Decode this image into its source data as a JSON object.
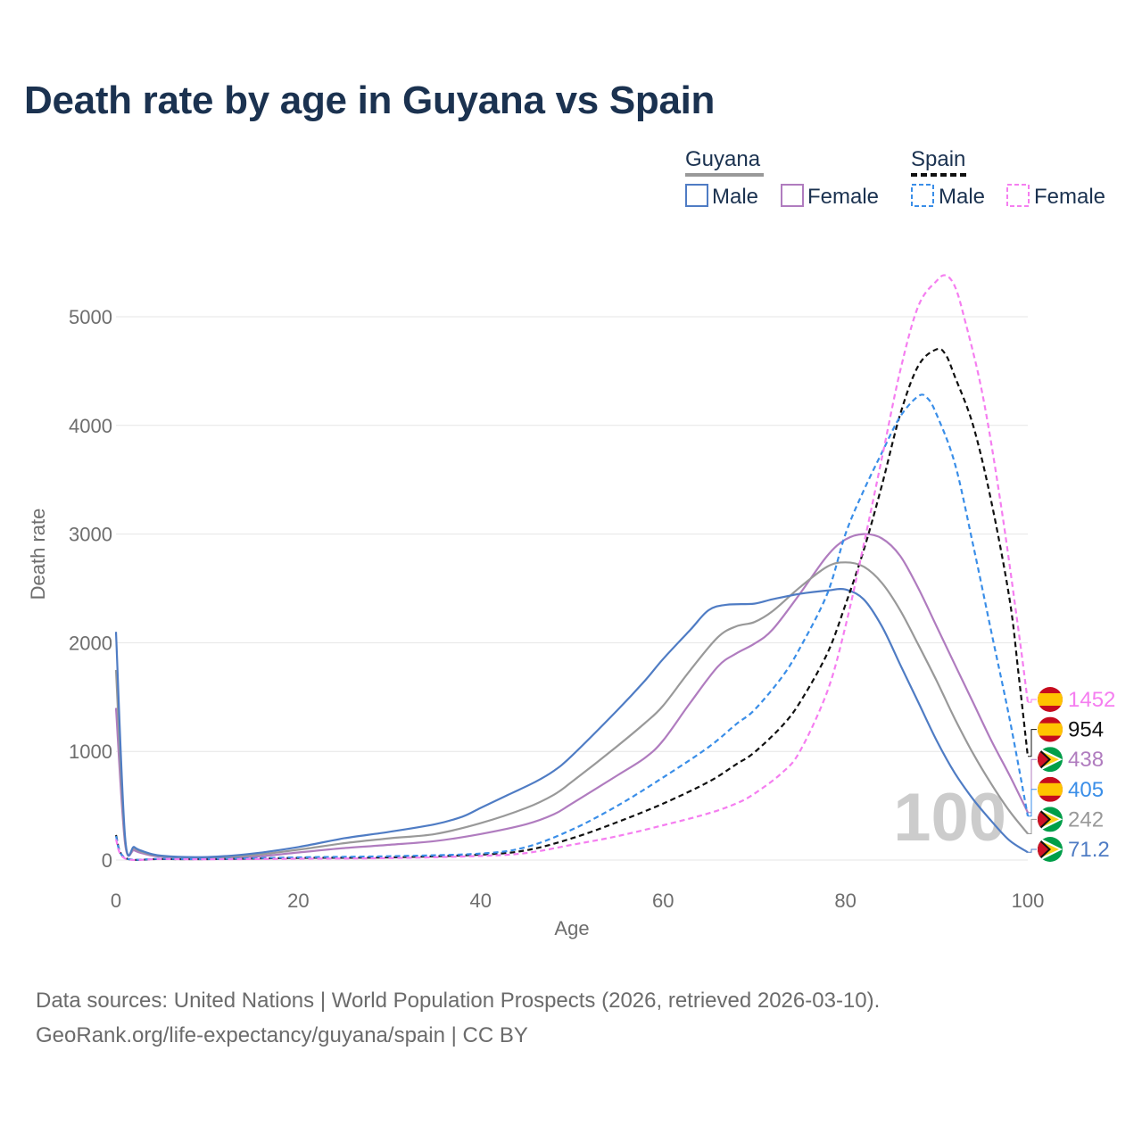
{
  "title": "Death rate by age in Guyana vs Spain",
  "source": {
    "line1": "Data sources: United Nations | World Population Prospects (2026, retrieved 2026-03-10).",
    "line2": "GeoRank.org/life-expectancy/guyana/spain | CC BY"
  },
  "legend": {
    "groups": [
      {
        "label": "Guyana",
        "line_color": "#999999",
        "dashed": false,
        "items": [
          {
            "label": "Male",
            "color": "#4f7cc4"
          },
          {
            "label": "Female",
            "color": "#b07cbf"
          }
        ]
      },
      {
        "label": "Spain",
        "line_color": "#111111",
        "dashed": true,
        "items": [
          {
            "label": "Male",
            "color": "#3a8ee8"
          },
          {
            "label": "Female",
            "color": "#f57ef0"
          }
        ]
      }
    ]
  },
  "watermark": "100",
  "chart_data": {
    "type": "line",
    "title": "Death rate by age in Guyana vs Spain",
    "xlabel": "Age",
    "ylabel": "Death rate",
    "xlim": [
      0,
      100
    ],
    "ylim": [
      0,
      5500
    ],
    "xticks": [
      0,
      20,
      40,
      60,
      80,
      100
    ],
    "yticks": [
      0,
      1000,
      2000,
      3000,
      4000,
      5000
    ],
    "grid": true,
    "legend_position": "top-right",
    "series": [
      {
        "name": "Guyana Female",
        "country": "guyana",
        "color": "#b07cbf",
        "dashed": false,
        "end_label": "438",
        "points": [
          [
            0,
            1400
          ],
          [
            1,
            150
          ],
          [
            2,
            90
          ],
          [
            3,
            60
          ],
          [
            5,
            30
          ],
          [
            10,
            18
          ],
          [
            15,
            30
          ],
          [
            20,
            70
          ],
          [
            25,
            110
          ],
          [
            30,
            140
          ],
          [
            35,
            175
          ],
          [
            40,
            240
          ],
          [
            45,
            330
          ],
          [
            48,
            420
          ],
          [
            50,
            520
          ],
          [
            55,
            780
          ],
          [
            58,
            940
          ],
          [
            60,
            1100
          ],
          [
            63,
            1450
          ],
          [
            66,
            1780
          ],
          [
            68,
            1900
          ],
          [
            70,
            1990
          ],
          [
            72,
            2120
          ],
          [
            75,
            2450
          ],
          [
            78,
            2800
          ],
          [
            80,
            2950
          ],
          [
            82,
            3000
          ],
          [
            84,
            2960
          ],
          [
            86,
            2800
          ],
          [
            88,
            2500
          ],
          [
            90,
            2150
          ],
          [
            92,
            1800
          ],
          [
            94,
            1450
          ],
          [
            96,
            1100
          ],
          [
            98,
            780
          ],
          [
            100,
            438
          ]
        ]
      },
      {
        "name": "Guyana Total",
        "country": "guyana",
        "color": "#999999",
        "dashed": false,
        "end_label": "242",
        "points": [
          [
            0,
            1750
          ],
          [
            1,
            180
          ],
          [
            2,
            110
          ],
          [
            3,
            70
          ],
          [
            5,
            35
          ],
          [
            10,
            22
          ],
          [
            15,
            45
          ],
          [
            20,
            95
          ],
          [
            25,
            155
          ],
          [
            30,
            200
          ],
          [
            35,
            240
          ],
          [
            40,
            340
          ],
          [
            45,
            480
          ],
          [
            48,
            600
          ],
          [
            50,
            720
          ],
          [
            55,
            1050
          ],
          [
            58,
            1260
          ],
          [
            60,
            1420
          ],
          [
            63,
            1750
          ],
          [
            66,
            2050
          ],
          [
            68,
            2150
          ],
          [
            70,
            2190
          ],
          [
            72,
            2290
          ],
          [
            75,
            2510
          ],
          [
            78,
            2700
          ],
          [
            80,
            2740
          ],
          [
            82,
            2700
          ],
          [
            84,
            2550
          ],
          [
            86,
            2300
          ],
          [
            88,
            1980
          ],
          [
            90,
            1650
          ],
          [
            92,
            1300
          ],
          [
            94,
            980
          ],
          [
            96,
            700
          ],
          [
            98,
            450
          ],
          [
            100,
            242
          ]
        ]
      },
      {
        "name": "Guyana Male",
        "country": "guyana",
        "color": "#4f7cc4",
        "dashed": false,
        "end_label": "71.2",
        "points": [
          [
            0,
            2100
          ],
          [
            1,
            210
          ],
          [
            2,
            120
          ],
          [
            3,
            80
          ],
          [
            5,
            40
          ],
          [
            10,
            28
          ],
          [
            15,
            60
          ],
          [
            20,
            120
          ],
          [
            25,
            200
          ],
          [
            30,
            260
          ],
          [
            35,
            330
          ],
          [
            38,
            400
          ],
          [
            40,
            480
          ],
          [
            43,
            600
          ],
          [
            46,
            720
          ],
          [
            48,
            820
          ],
          [
            50,
            960
          ],
          [
            55,
            1380
          ],
          [
            58,
            1650
          ],
          [
            60,
            1850
          ],
          [
            63,
            2120
          ],
          [
            65,
            2300
          ],
          [
            67,
            2350
          ],
          [
            70,
            2360
          ],
          [
            72,
            2400
          ],
          [
            75,
            2450
          ],
          [
            78,
            2480
          ],
          [
            80,
            2490
          ],
          [
            82,
            2400
          ],
          [
            84,
            2150
          ],
          [
            86,
            1800
          ],
          [
            88,
            1450
          ],
          [
            90,
            1100
          ],
          [
            92,
            800
          ],
          [
            94,
            560
          ],
          [
            96,
            360
          ],
          [
            98,
            180
          ],
          [
            100,
            71.2
          ]
        ]
      },
      {
        "name": "Spain Total",
        "country": "spain",
        "color": "#111111",
        "dashed": true,
        "end_label": "954",
        "points": [
          [
            0,
            230
          ],
          [
            1,
            20
          ],
          [
            5,
            10
          ],
          [
            10,
            8
          ],
          [
            20,
            20
          ],
          [
            30,
            25
          ],
          [
            40,
            50
          ],
          [
            45,
            90
          ],
          [
            50,
            200
          ],
          [
            55,
            350
          ],
          [
            60,
            520
          ],
          [
            65,
            720
          ],
          [
            68,
            880
          ],
          [
            70,
            990
          ],
          [
            73,
            1230
          ],
          [
            75,
            1450
          ],
          [
            78,
            1900
          ],
          [
            80,
            2350
          ],
          [
            82,
            2850
          ],
          [
            84,
            3450
          ],
          [
            86,
            4100
          ],
          [
            88,
            4550
          ],
          [
            90,
            4700
          ],
          [
            91,
            4650
          ],
          [
            92,
            4450
          ],
          [
            94,
            4000
          ],
          [
            96,
            3300
          ],
          [
            98,
            2400
          ],
          [
            99,
            1700
          ],
          [
            100,
            954
          ]
        ]
      },
      {
        "name": "Spain Male",
        "country": "spain",
        "color": "#3a8ee8",
        "dashed": true,
        "end_label": "405",
        "points": [
          [
            0,
            220
          ],
          [
            1,
            20
          ],
          [
            5,
            12
          ],
          [
            10,
            10
          ],
          [
            20,
            25
          ],
          [
            30,
            35
          ],
          [
            40,
            60
          ],
          [
            45,
            120
          ],
          [
            50,
            280
          ],
          [
            55,
            500
          ],
          [
            60,
            760
          ],
          [
            65,
            1040
          ],
          [
            68,
            1250
          ],
          [
            70,
            1380
          ],
          [
            73,
            1680
          ],
          [
            75,
            1950
          ],
          [
            78,
            2450
          ],
          [
            80,
            3000
          ],
          [
            82,
            3400
          ],
          [
            84,
            3750
          ],
          [
            86,
            4080
          ],
          [
            88,
            4270
          ],
          [
            89,
            4250
          ],
          [
            90,
            4100
          ],
          [
            92,
            3650
          ],
          [
            94,
            2900
          ],
          [
            96,
            2100
          ],
          [
            98,
            1300
          ],
          [
            100,
            405
          ]
        ]
      },
      {
        "name": "Spain Female",
        "country": "spain",
        "color": "#f57ef0",
        "dashed": true,
        "end_label": "1452",
        "points": [
          [
            0,
            190
          ],
          [
            1,
            15
          ],
          [
            5,
            10
          ],
          [
            10,
            7
          ],
          [
            20,
            12
          ],
          [
            30,
            18
          ],
          [
            40,
            38
          ],
          [
            45,
            65
          ],
          [
            50,
            140
          ],
          [
            55,
            220
          ],
          [
            60,
            320
          ],
          [
            65,
            430
          ],
          [
            68,
            520
          ],
          [
            70,
            610
          ],
          [
            73,
            800
          ],
          [
            75,
            1000
          ],
          [
            78,
            1550
          ],
          [
            80,
            2150
          ],
          [
            82,
            2900
          ],
          [
            84,
            3700
          ],
          [
            86,
            4500
          ],
          [
            88,
            5100
          ],
          [
            90,
            5330
          ],
          [
            91,
            5380
          ],
          [
            92,
            5280
          ],
          [
            93,
            5000
          ],
          [
            95,
            4300
          ],
          [
            97,
            3300
          ],
          [
            99,
            2100
          ],
          [
            100,
            1452
          ]
        ]
      }
    ]
  }
}
